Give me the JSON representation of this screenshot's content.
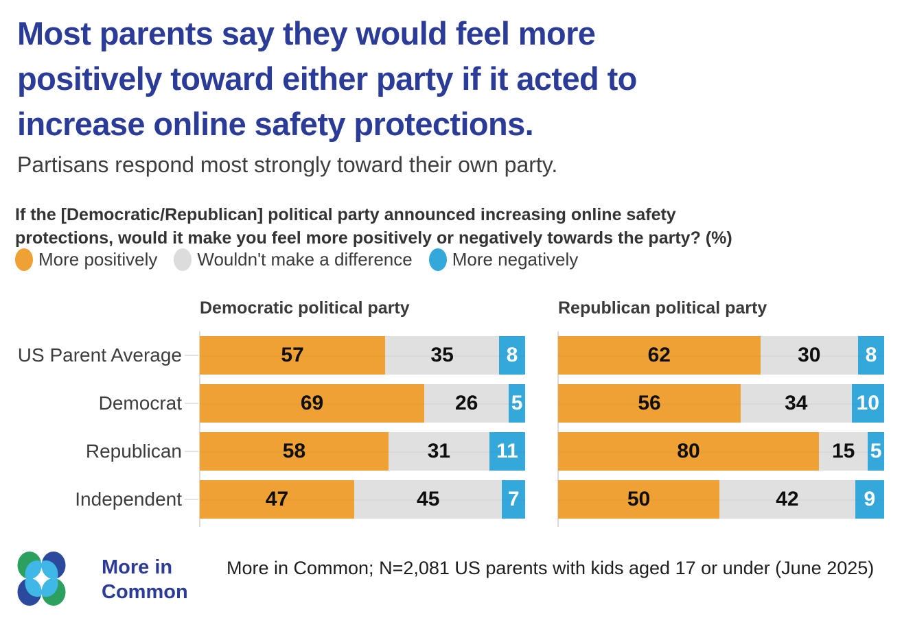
{
  "header": {
    "title_lines": [
      "Most parents say they would feel more",
      "positively toward either party if it acted to",
      "increase online safety protections."
    ],
    "subtitle": "Partisans respond most strongly toward their own party."
  },
  "question_lines": [
    "If the [Democratic/Republican] political party announced increasing online safety",
    "protections, would it make you feel more positively or negatively towards the party? (%)"
  ],
  "legend": [
    {
      "label": "More positively",
      "color": "#EFA233"
    },
    {
      "label": "Wouldn't make a difference",
      "color": "#DCDCDC"
    },
    {
      "label": "More negatively",
      "color": "#34A7DB"
    }
  ],
  "chart_data": {
    "type": "bar",
    "orientation": "horizontal-stacked",
    "categories": [
      "US Parent Average",
      "Democrat",
      "Republican",
      "Independent"
    ],
    "series_names": [
      "More positively",
      "Wouldn't make a difference",
      "More negatively"
    ],
    "series_colors": [
      "#EFA233",
      "#E0E0E0",
      "#34A7DB"
    ],
    "xlim": [
      0,
      100
    ],
    "panels": [
      {
        "title": "Democratic political party",
        "series": [
          {
            "name": "More positively",
            "values": [
              57,
              69,
              58,
              47
            ]
          },
          {
            "name": "Wouldn't make a difference",
            "values": [
              35,
              26,
              31,
              45
            ]
          },
          {
            "name": "More negatively",
            "values": [
              8,
              5,
              11,
              7
            ]
          }
        ]
      },
      {
        "title": "Republican political party",
        "series": [
          {
            "name": "More positively",
            "values": [
              62,
              56,
              80,
              50
            ]
          },
          {
            "name": "Wouldn't make a difference",
            "values": [
              30,
              34,
              15,
              42
            ]
          },
          {
            "name": "More negatively",
            "values": [
              8,
              10,
              5,
              9
            ]
          }
        ]
      }
    ]
  },
  "footer": {
    "logo_line1": "More in",
    "logo_line2": "Common",
    "source": "More in Common; N=2,081 US parents with kids aged 17 or under (June 2025)"
  },
  "colors": {
    "title_navy": "#2B3B98",
    "positive_orange": "#EFA233",
    "neutral_gray": "#E0E0E0",
    "negative_blue": "#34A7DB",
    "logo_green": "#2BA05F",
    "logo_navy": "#2C4A9D",
    "logo_lightblue": "#3FB8E8"
  }
}
